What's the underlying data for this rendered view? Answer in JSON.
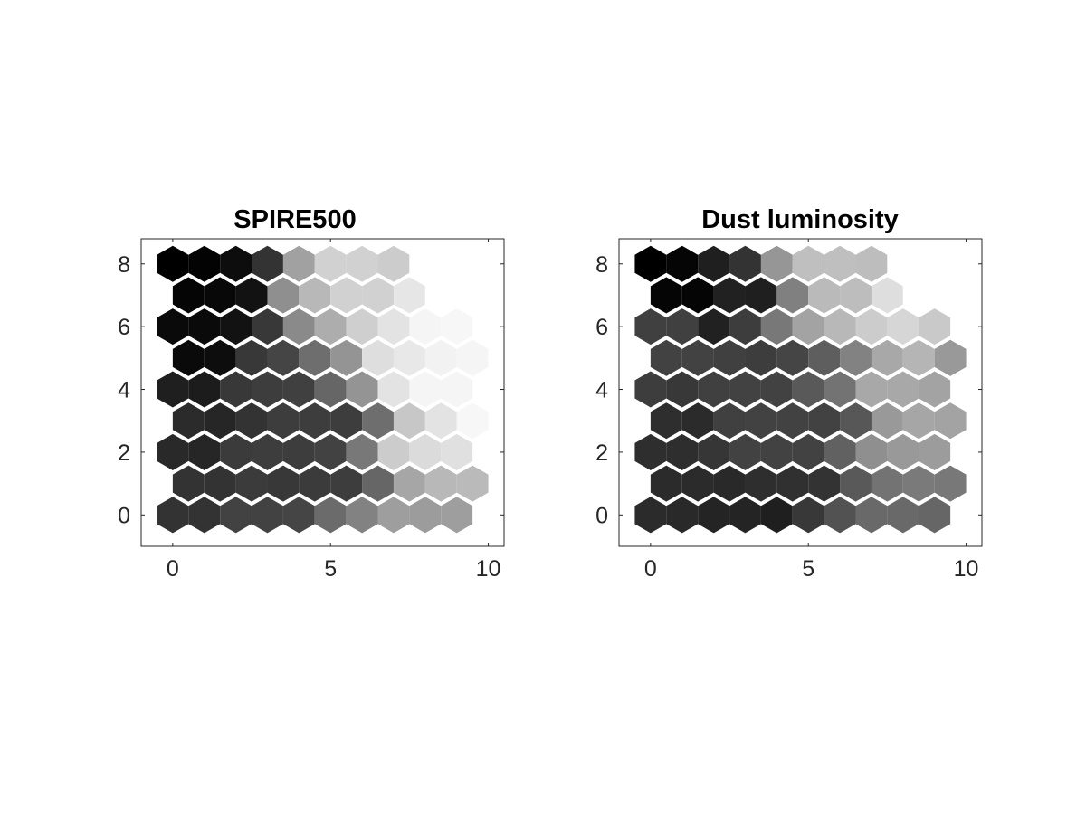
{
  "figure": {
    "background": "#ffffff",
    "colormap": "gray",
    "color_low": "#000000",
    "color_high": "#ffffff"
  },
  "chart_data": [
    {
      "type": "heatmap",
      "subtype": "hexagonal-som-component-plane",
      "title": "SPIRE500",
      "xlabel": "",
      "ylabel": "",
      "xlim": [
        -1,
        10.5
      ],
      "ylim": [
        -1,
        8.8
      ],
      "xticks": [
        0,
        5,
        10
      ],
      "yticks": [
        0,
        2,
        4,
        6,
        8
      ],
      "grid": false,
      "rows": 9,
      "cols": 10,
      "row_order": "top-to-bottom (y = 8 down to 0)",
      "values": [
        [
          0.0,
          0.01,
          0.05,
          0.2,
          0.63,
          0.82,
          0.82,
          0.8,
          1.0,
          1.0
        ],
        [
          0.02,
          0.03,
          0.07,
          0.56,
          0.72,
          0.82,
          0.82,
          0.9,
          1.0,
          1.0
        ],
        [
          0.04,
          0.04,
          0.07,
          0.22,
          0.54,
          0.68,
          0.81,
          0.89,
          0.96,
          0.97
        ],
        [
          0.04,
          0.05,
          0.22,
          0.27,
          0.43,
          0.58,
          0.87,
          0.91,
          0.95,
          0.96
        ],
        [
          0.12,
          0.11,
          0.22,
          0.24,
          0.25,
          0.4,
          0.58,
          0.89,
          0.96,
          0.96
        ],
        [
          0.17,
          0.15,
          0.2,
          0.24,
          0.24,
          0.24,
          0.43,
          0.78,
          0.89,
          0.97
        ],
        [
          0.16,
          0.15,
          0.23,
          0.24,
          0.24,
          0.26,
          0.47,
          0.8,
          0.86,
          0.88
        ],
        [
          0.2,
          0.2,
          0.23,
          0.22,
          0.23,
          0.24,
          0.4,
          0.65,
          0.72,
          0.73
        ],
        [
          0.2,
          0.2,
          0.26,
          0.26,
          0.27,
          0.42,
          0.51,
          0.62,
          0.61,
          0.62
        ]
      ]
    },
    {
      "type": "heatmap",
      "subtype": "hexagonal-som-component-plane",
      "title": "Dust luminosity",
      "xlabel": "",
      "ylabel": "",
      "xlim": [
        -1,
        10.5
      ],
      "ylim": [
        -1,
        8.8
      ],
      "xticks": [
        0,
        5,
        10
      ],
      "yticks": [
        0,
        2,
        4,
        6,
        8
      ],
      "grid": false,
      "rows": 9,
      "cols": 10,
      "row_order": "top-to-bottom (y = 8 down to 0)",
      "values": [
        [
          0.0,
          0.02,
          0.12,
          0.2,
          0.59,
          0.75,
          0.75,
          0.74,
          1.0,
          1.0
        ],
        [
          0.02,
          0.02,
          0.13,
          0.12,
          0.5,
          0.73,
          0.74,
          0.87,
          1.0,
          1.0
        ],
        [
          0.25,
          0.25,
          0.13,
          0.24,
          0.47,
          0.64,
          0.72,
          0.8,
          0.84,
          0.79
        ],
        [
          0.26,
          0.26,
          0.25,
          0.24,
          0.27,
          0.37,
          0.51,
          0.66,
          0.71,
          0.6
        ],
        [
          0.24,
          0.22,
          0.25,
          0.26,
          0.26,
          0.35,
          0.45,
          0.66,
          0.66,
          0.64
        ],
        [
          0.18,
          0.17,
          0.25,
          0.26,
          0.26,
          0.26,
          0.34,
          0.6,
          0.65,
          0.64
        ],
        [
          0.18,
          0.18,
          0.21,
          0.26,
          0.26,
          0.26,
          0.38,
          0.56,
          0.6,
          0.61
        ],
        [
          0.17,
          0.17,
          0.16,
          0.18,
          0.19,
          0.2,
          0.35,
          0.45,
          0.48,
          0.47
        ],
        [
          0.17,
          0.16,
          0.14,
          0.14,
          0.12,
          0.22,
          0.32,
          0.41,
          0.41,
          0.4
        ]
      ]
    }
  ]
}
